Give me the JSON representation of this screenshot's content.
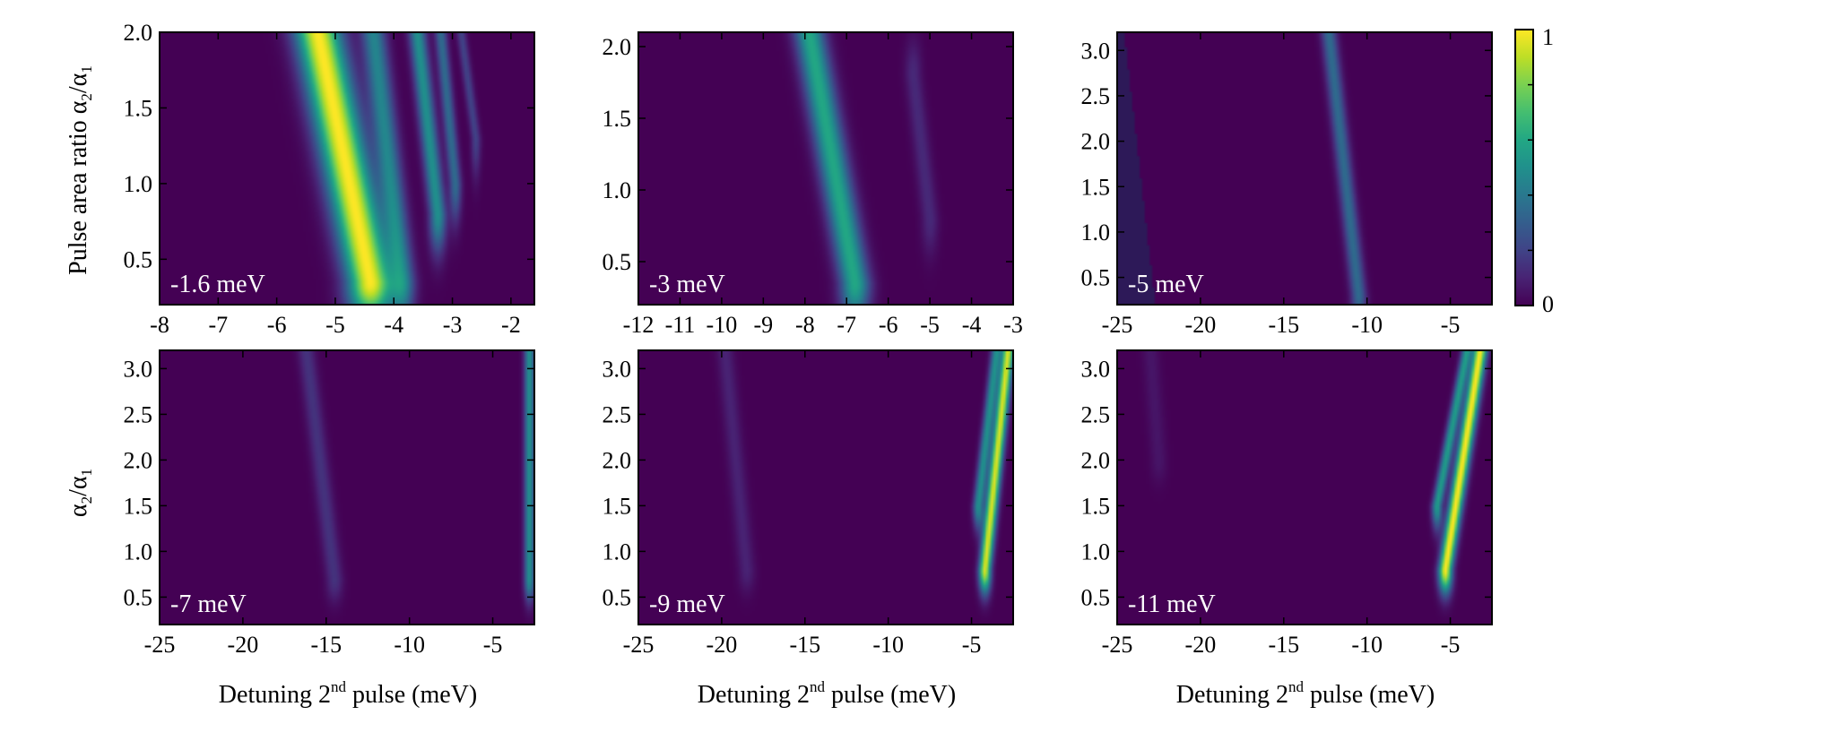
{
  "chart_data": [
    {
      "type": "heatmap",
      "panel_label": "-1.6 meV",
      "xlim": [
        -8.0,
        -1.6
      ],
      "ylim": [
        0.2,
        2.0
      ],
      "x_ticks": [
        -8,
        -7,
        -6,
        -5,
        -4,
        -3,
        -2
      ],
      "y_ticks": [
        0.5,
        1.0,
        1.5,
        2.0
      ],
      "y_tick_labels": [
        "0.5",
        "1.0",
        "1.5",
        "2.0"
      ],
      "ridges": [
        {
          "bottom": [
            -4.4,
            0.35
          ],
          "top": [
            -5.3,
            2.0
          ],
          "width": 0.38,
          "peak": 1.0
        },
        {
          "bottom": [
            -3.85,
            0.35
          ],
          "top": [
            -4.35,
            2.0
          ],
          "width": 0.2,
          "peak": 0.45
        },
        {
          "bottom": [
            -3.25,
            0.8
          ],
          "top": [
            -3.6,
            2.0
          ],
          "width": 0.14,
          "peak": 0.5
        },
        {
          "bottom": [
            -2.95,
            1.0
          ],
          "top": [
            -3.2,
            2.0
          ],
          "width": 0.1,
          "peak": 0.35
        },
        {
          "bottom": [
            -2.6,
            1.3
          ],
          "top": [
            -2.85,
            2.0
          ],
          "width": 0.08,
          "peak": 0.2
        }
      ]
    },
    {
      "type": "heatmap",
      "panel_label": "-3 meV",
      "xlim": [
        -12.0,
        -3.0
      ],
      "ylim": [
        0.2,
        2.1
      ],
      "x_ticks": [
        -12,
        -11,
        -10,
        -9,
        -8,
        -7,
        -6,
        -5,
        -4,
        -3
      ],
      "y_ticks": [
        0.5,
        1.0,
        1.5,
        2.0
      ],
      "y_tick_labels": [
        "0.5",
        "1.0",
        "1.5",
        "2.0"
      ],
      "ridges": [
        {
          "bottom": [
            -6.8,
            0.35
          ],
          "top": [
            -7.9,
            2.1
          ],
          "width": 0.35,
          "peak": 0.6
        },
        {
          "bottom": [
            -5.0,
            0.8
          ],
          "top": [
            -5.4,
            1.8
          ],
          "width": 0.2,
          "peak": 0.12
        }
      ]
    },
    {
      "type": "heatmap",
      "panel_label": "-5 meV",
      "xlim": [
        -25.0,
        -2.5
      ],
      "ylim": [
        0.2,
        3.2
      ],
      "x_ticks": [
        -25,
        -20,
        -15,
        -10,
        -5
      ],
      "y_ticks": [
        0.5,
        1.0,
        1.5,
        2.0,
        2.5,
        3.0
      ],
      "y_tick_labels": [
        "0.5",
        "1.0",
        "1.5",
        "2.0",
        "2.5",
        "3.0"
      ],
      "ridges": [
        {
          "bottom": [
            -10.5,
            0.3
          ],
          "top": [
            -12.3,
            3.2
          ],
          "width": 0.45,
          "peak": 0.35
        }
      ]
    },
    {
      "type": "heatmap",
      "panel_label": "-7 meV",
      "xlim": [
        -25.0,
        -2.5
      ],
      "ylim": [
        0.2,
        3.2
      ],
      "x_ticks": [
        -25,
        -20,
        -15,
        -10,
        -5
      ],
      "y_ticks": [
        0.5,
        1.0,
        1.5,
        2.0,
        2.5,
        3.0
      ],
      "y_tick_labels": [
        "0.5",
        "1.0",
        "1.5",
        "2.0",
        "2.5",
        "3.0"
      ],
      "ridges": [
        {
          "bottom": [
            -14.5,
            0.7
          ],
          "top": [
            -16.2,
            3.2
          ],
          "width": 0.5,
          "peak": 0.15
        },
        {
          "bottom": [
            -2.8,
            0.7
          ],
          "top": [
            -2.8,
            3.2
          ],
          "width": 0.3,
          "peak": 0.5
        }
      ]
    },
    {
      "type": "heatmap",
      "panel_label": "-9 meV",
      "xlim": [
        -25.0,
        -2.5
      ],
      "ylim": [
        0.2,
        3.2
      ],
      "x_ticks": [
        -25,
        -20,
        -15,
        -10,
        -5
      ],
      "y_ticks": [
        0.5,
        1.0,
        1.5,
        2.0,
        2.5,
        3.0
      ],
      "y_tick_labels": [
        "0.5",
        "1.0",
        "1.5",
        "2.0",
        "2.5",
        "3.0"
      ],
      "ridges": [
        {
          "bottom": [
            -18.5,
            0.8
          ],
          "top": [
            -19.8,
            3.2
          ],
          "width": 0.5,
          "peak": 0.1
        },
        {
          "bottom": [
            -4.2,
            0.8
          ],
          "top": [
            -2.8,
            3.2
          ],
          "width": 0.35,
          "peak": 0.95
        },
        {
          "bottom": [
            -4.6,
            1.5
          ],
          "top": [
            -3.5,
            3.2
          ],
          "width": 0.3,
          "peak": 0.5
        }
      ]
    },
    {
      "type": "heatmap",
      "panel_label": "-11 meV",
      "xlim": [
        -25.0,
        -2.5
      ],
      "ylim": [
        0.2,
        3.2
      ],
      "x_ticks": [
        -25,
        -20,
        -15,
        -10,
        -5
      ],
      "y_ticks": [
        0.5,
        1.0,
        1.5,
        2.0,
        2.5,
        3.0
      ],
      "y_tick_labels": [
        "0.5",
        "1.0",
        "1.5",
        "2.0",
        "2.5",
        "3.0"
      ],
      "ridges": [
        {
          "bottom": [
            -5.3,
            0.8
          ],
          "top": [
            -3.2,
            3.2
          ],
          "width": 0.4,
          "peak": 1.0
        },
        {
          "bottom": [
            -5.8,
            1.5
          ],
          "top": [
            -4.0,
            3.2
          ],
          "width": 0.3,
          "peak": 0.55
        },
        {
          "bottom": [
            -22.5,
            2.0
          ],
          "top": [
            -23.0,
            3.2
          ],
          "width": 0.5,
          "peak": 0.06
        }
      ]
    }
  ],
  "colorbar": {
    "min_label": "0",
    "max_label": "1",
    "colors": [
      "#000000",
      "#2b1b5e",
      "#3b3f86",
      "#2d6e8e",
      "#1f9a8a",
      "#49c16d",
      "#b5dd2b",
      "#fde725"
    ]
  },
  "labels": {
    "ylabel_top_main": "Pulse area ratio ",
    "ylabel_top_alpha2": "α",
    "ylabel_top_sub2": "2",
    "ylabel_top_slash": "/α",
    "ylabel_top_sub1": "1",
    "ylabel_bottom_alpha2": "α",
    "ylabel_bottom_sub2": "2",
    "ylabel_bottom_slash": "/α",
    "ylabel_bottom_sub1": "1",
    "xlabel_pre": "Detuning 2",
    "xlabel_sup": "nd",
    "xlabel_post": " pulse (meV)"
  }
}
